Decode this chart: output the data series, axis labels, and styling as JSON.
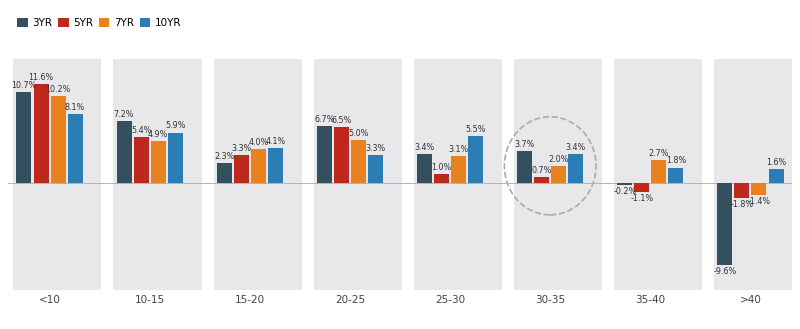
{
  "categories": [
    "<10",
    "10-15",
    "15-20",
    "20-25",
    "25-30",
    "30-35",
    "35-40",
    ">40"
  ],
  "series": {
    "3YR": [
      10.7,
      7.2,
      2.3,
      6.7,
      3.4,
      3.7,
      -0.2,
      -9.6
    ],
    "5YR": [
      11.6,
      5.4,
      3.3,
      6.5,
      1.0,
      0.7,
      -1.1,
      -1.8
    ],
    "7YR": [
      10.2,
      4.9,
      4.0,
      5.0,
      3.1,
      2.0,
      2.7,
      -1.4
    ],
    "10YR": [
      8.1,
      5.9,
      4.1,
      3.3,
      5.5,
      3.4,
      1.8,
      1.6
    ]
  },
  "colors": {
    "3YR": "#344f5e",
    "5YR": "#c0271d",
    "7YR": "#e8821e",
    "10YR": "#2a7db5"
  },
  "labels": {
    "3YR": [
      "10.7%",
      "7.2%",
      "2.3%",
      "6.7%",
      "3.4%",
      "3.7%",
      "-0.2%",
      "-9.6%"
    ],
    "5YR": [
      "11.6%",
      "5.4%",
      "3.3%",
      "6.5%",
      "1.0%",
      "0.7%",
      "-1.1%",
      "-1.8%"
    ],
    "7YR": [
      "10.2%",
      "4.9%",
      "4.0%",
      "5.0%",
      "3.1%",
      "2.0%",
      "2.7%",
      "-1.4%"
    ],
    "10YR": [
      "8.1%",
      "5.9%",
      "4.1%",
      "3.3%",
      "5.5%",
      "3.4%",
      "1.8%",
      "1.6%"
    ]
  },
  "series_order": [
    "3YR",
    "5YR",
    "7YR",
    "10YR"
  ],
  "panel_color": "#e8e8eb",
  "bg_color": "#ffffff",
  "ylim": [
    -12.5,
    14.5
  ],
  "dashed_circle_group": 5,
  "label_fontsize": 5.8,
  "legend_fontsize": 7.5,
  "xtick_fontsize": 7.5
}
